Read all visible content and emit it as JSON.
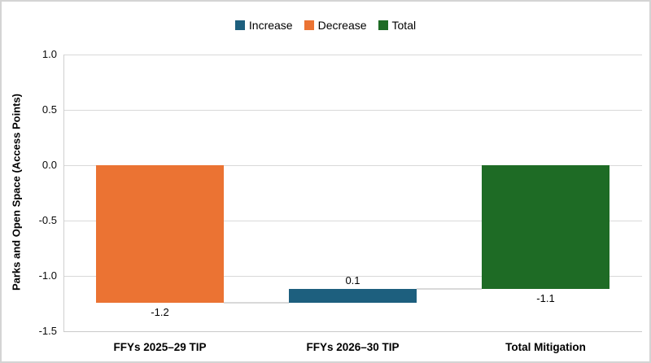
{
  "chart_data": {
    "type": "waterfall",
    "title": "",
    "ylabel": "Parks and Open Space (Access Points)",
    "ylim": [
      -1.5,
      1.0
    ],
    "yticks": [
      "1.0",
      "0.5",
      "0.0",
      "-0.5",
      "-1.0",
      "-1.5"
    ],
    "grid": "horizontal",
    "legend_position": "top-center",
    "legend": [
      {
        "key": "increase",
        "label": "Increase"
      },
      {
        "key": "decrease",
        "label": "Decrease"
      },
      {
        "key": "total",
        "label": "Total"
      }
    ],
    "colors": {
      "increase": "#1d5f7e",
      "decrease": "#eb7333",
      "total": "#1e6b25",
      "gridline": "#d9d9d9",
      "connector": "#d9d9d9"
    },
    "categories": [
      "FFYs 2025–29 TIP",
      "FFYs 2026–30 TIP",
      "Total Mitigation"
    ],
    "bars": [
      {
        "category": "FFYs 2025–29 TIP",
        "role": "decrease",
        "label": "-1.2",
        "start": 0,
        "end": -1.245,
        "label_position": "below"
      },
      {
        "category": "FFYs 2026–30 TIP",
        "role": "increase",
        "label": "0.1",
        "start": -1.245,
        "end": -1.115,
        "label_position": "above"
      },
      {
        "category": "Total Mitigation",
        "role": "total",
        "label": "-1.1",
        "start": 0,
        "end": -1.115,
        "label_position": "below"
      }
    ]
  }
}
